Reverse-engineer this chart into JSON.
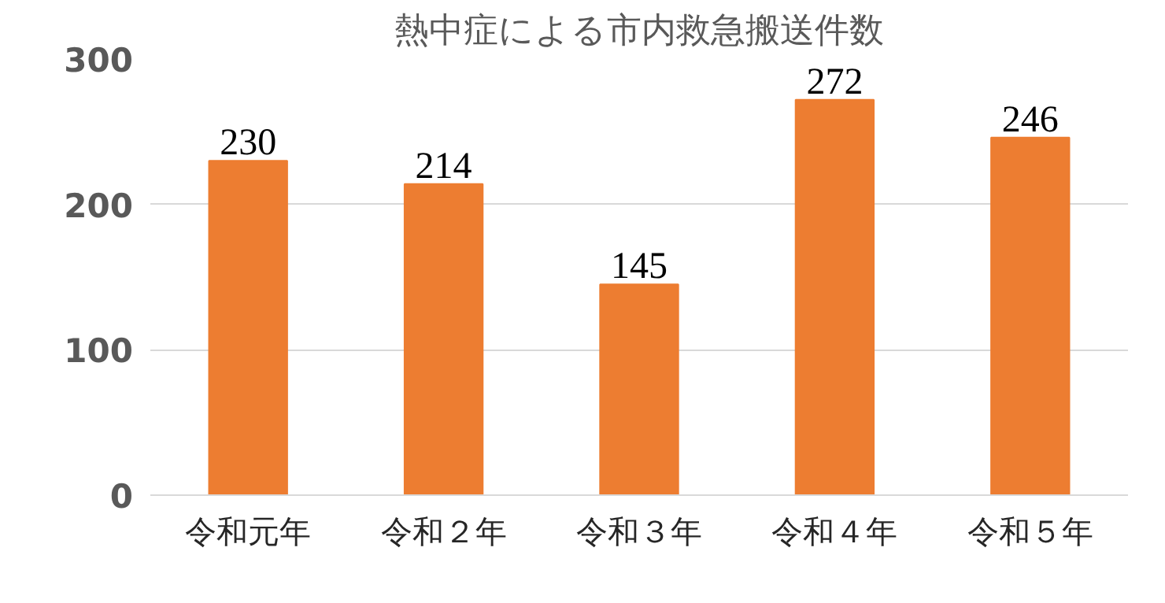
{
  "chart_data": {
    "type": "bar",
    "title": "熱中症による市内救急搬送件数",
    "categories": [
      "令和元年",
      "令和２年",
      "令和３年",
      "令和４年",
      "令和５年"
    ],
    "values": [
      230,
      214,
      145,
      272,
      246
    ],
    "color": "#ed7d31",
    "ylim": [
      0,
      300
    ],
    "yticks": [
      0,
      100,
      200,
      300
    ],
    "grid": "y",
    "data_labels": true
  }
}
